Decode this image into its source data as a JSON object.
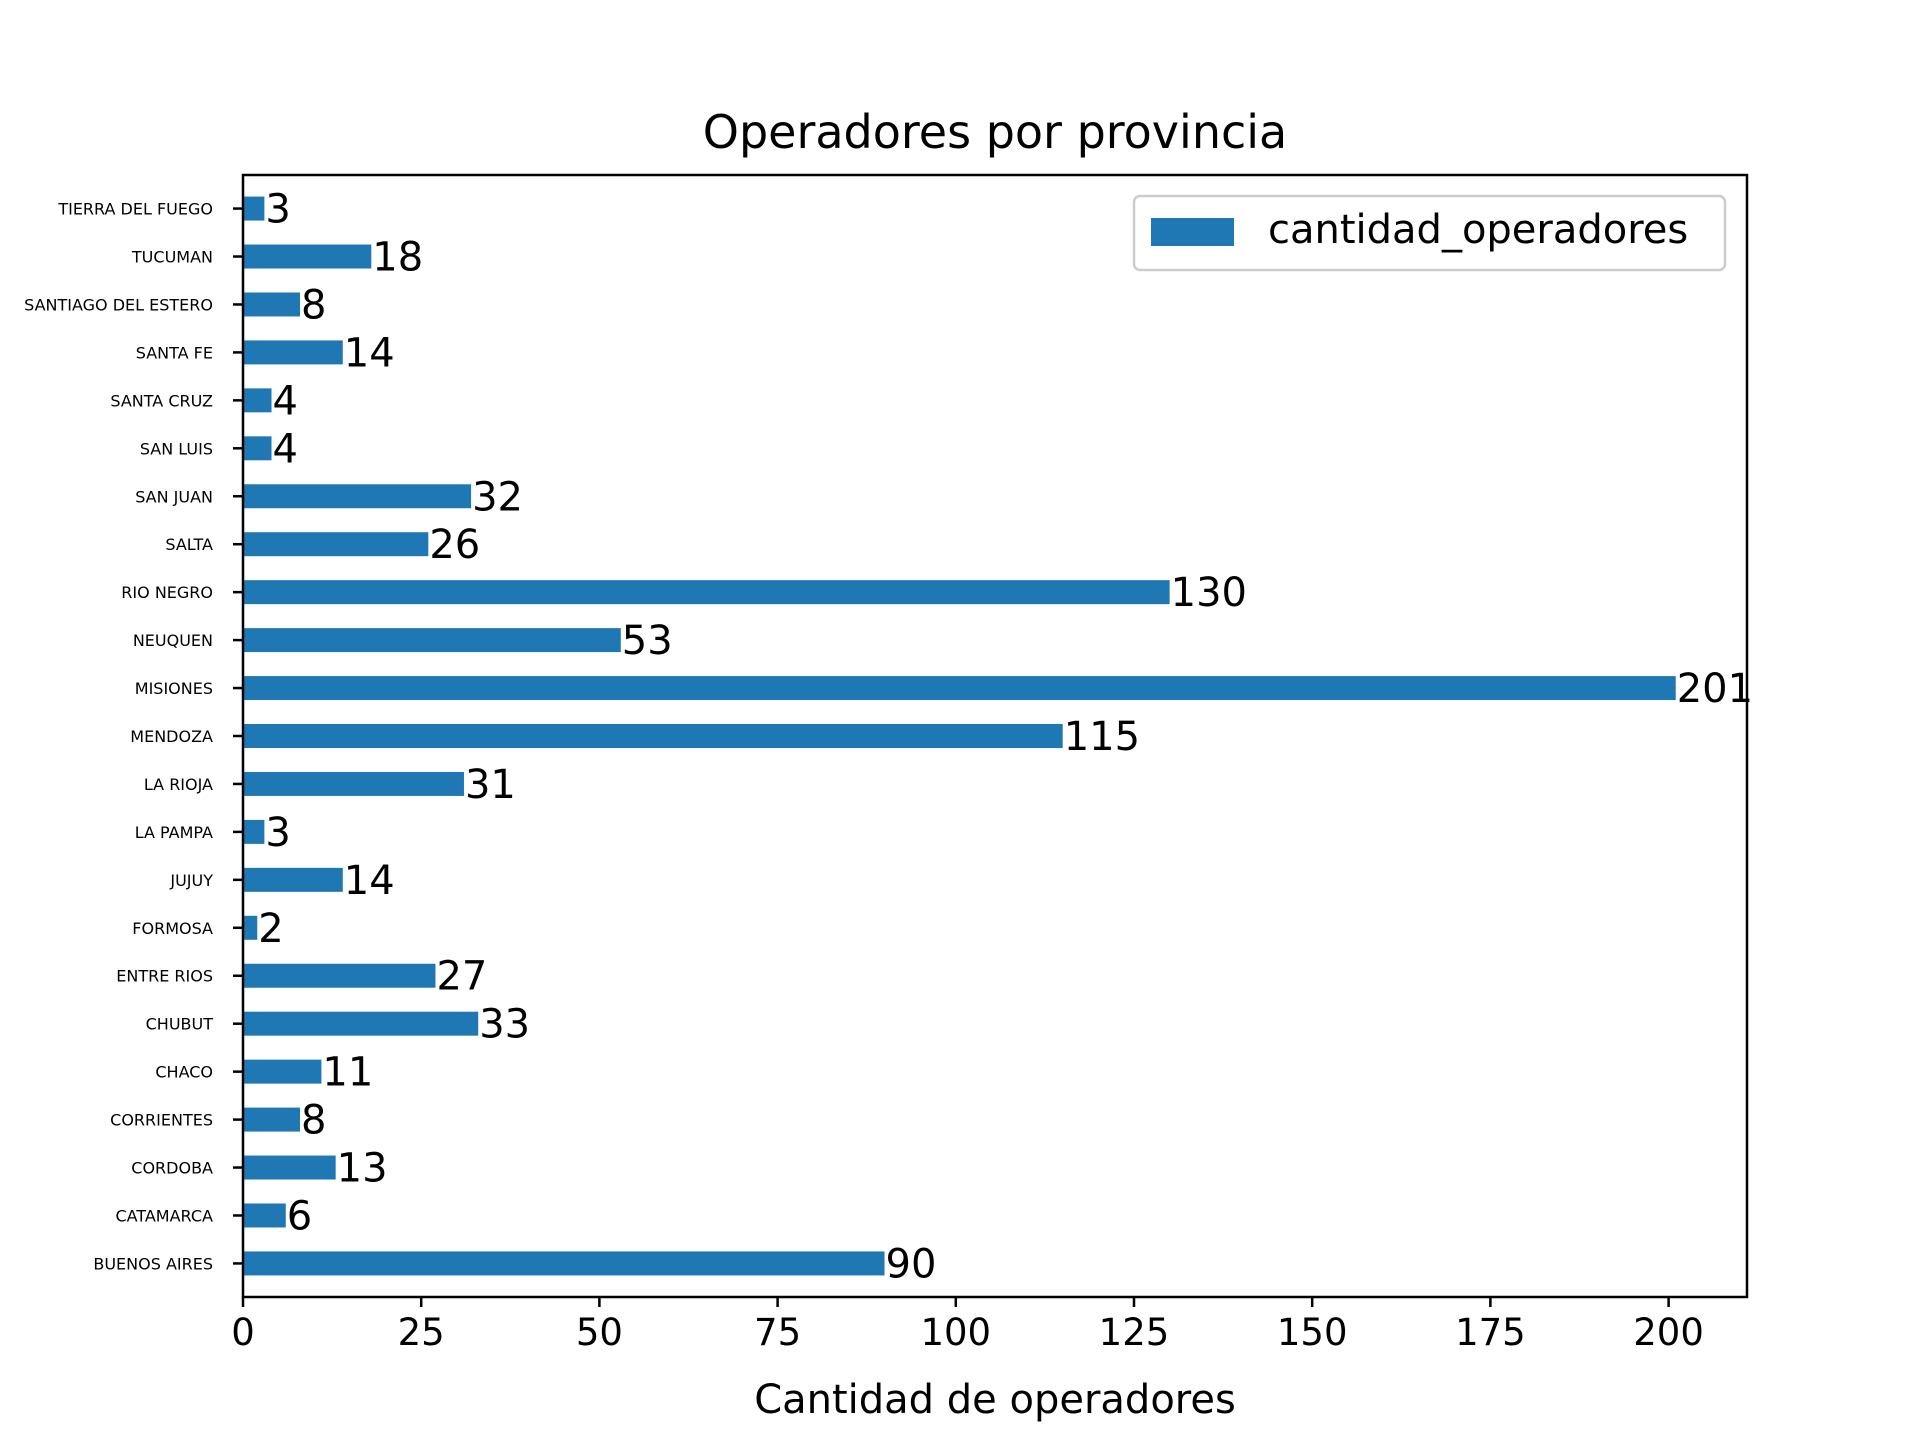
{
  "chart_data": {
    "type": "bar",
    "orientation": "horizontal",
    "title": "Operadores por provincia",
    "xlabel": "Cantidad de operadores",
    "ylabel": "",
    "xlim": [
      0,
      211
    ],
    "xticks": [
      0,
      25,
      50,
      75,
      100,
      125,
      150,
      175,
      200
    ],
    "grid": false,
    "legend_position": "top-right",
    "color": "#1f77b4",
    "categories": [
      "BUENOS AIRES",
      "CATAMARCA",
      "CORDOBA",
      "CORRIENTES",
      "CHACO",
      "CHUBUT",
      "ENTRE RIOS",
      "FORMOSA",
      "JUJUY",
      "LA PAMPA",
      "LA RIOJA",
      "MENDOZA",
      "MISIONES",
      "NEUQUEN",
      "RIO NEGRO",
      "SALTA",
      "SAN JUAN",
      "SAN LUIS",
      "SANTA CRUZ",
      "SANTA FE",
      "SANTIAGO DEL ESTERO",
      "TUCUMAN",
      "TIERRA DEL FUEGO"
    ],
    "series": [
      {
        "name": "cantidad_operadores",
        "values": [
          90,
          6,
          13,
          8,
          11,
          33,
          27,
          2,
          14,
          3,
          31,
          115,
          201,
          53,
          130,
          26,
          32,
          4,
          4,
          14,
          8,
          18,
          3
        ]
      }
    ]
  }
}
